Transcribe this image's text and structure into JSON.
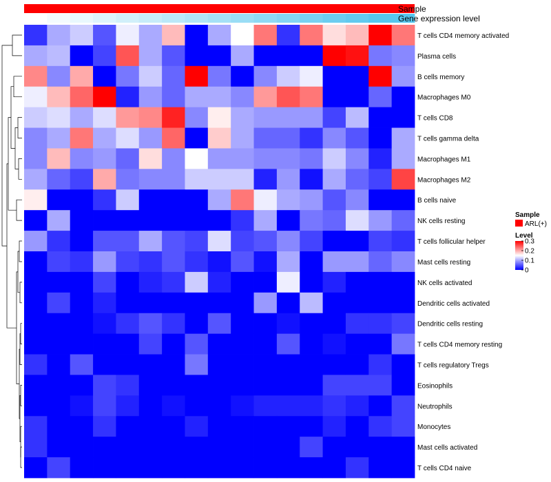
{
  "chart_data": {
    "type": "heatmap",
    "annotation_tracks": [
      {
        "name": "Sample",
        "kind": "categorical"
      },
      {
        "name": "Gene expression level",
        "kind": "continuous",
        "values": [
          0.0,
          0.07,
          0.13,
          0.2,
          0.27,
          0.33,
          0.4,
          0.47,
          0.53,
          0.6,
          0.67,
          0.73,
          0.8,
          0.87,
          0.93,
          1.0,
          1.0
        ]
      }
    ],
    "rows": [
      "T cells CD4 memory activated",
      "Plasma cells",
      "B cells memory",
      "Macrophages M0",
      "T cells CD8",
      "T cells gamma delta",
      "Macrophages M1",
      "Macrophages M2",
      "B cells naive",
      "NK cells resting",
      "T cells follicular helper",
      "Mast cells resting",
      "NK cells activated",
      "Dendritic cells activated",
      "Dendritic cells resting",
      "T cells CD4 memory resting",
      "T cells regulatory  Tregs",
      "Eosinophils",
      "Neutrophils",
      "Monocytes",
      "Mast cells activated",
      "T cells CD4 naive"
    ],
    "values": [
      [
        0.03,
        0.1,
        0.12,
        0.05,
        0.14,
        0.1,
        0.19,
        0.0,
        0.1,
        0.15,
        0.23,
        0.03,
        0.23,
        0.17,
        0.19,
        0.3,
        0.23
      ],
      [
        0.1,
        0.11,
        0.0,
        0.04,
        0.25,
        0.1,
        0.05,
        0.0,
        0.0,
        0.1,
        0.0,
        0.0,
        0.0,
        0.3,
        0.29,
        0.07,
        0.08
      ],
      [
        0.22,
        0.08,
        0.2,
        0.0,
        0.07,
        0.12,
        0.06,
        0.3,
        0.07,
        0.0,
        0.08,
        0.12,
        0.14,
        0.0,
        0.0,
        0.3,
        0.09
      ],
      [
        0.14,
        0.19,
        0.24,
        0.3,
        0.02,
        0.09,
        0.06,
        0.1,
        0.1,
        0.08,
        0.21,
        0.25,
        0.23,
        0.0,
        0.0,
        0.06,
        0.0
      ],
      [
        0.12,
        0.13,
        0.1,
        0.13,
        0.21,
        0.22,
        0.28,
        0.08,
        0.16,
        0.1,
        0.09,
        0.09,
        0.09,
        0.04,
        0.11,
        0.0,
        0.0
      ],
      [
        0.08,
        0.1,
        0.23,
        0.1,
        0.13,
        0.09,
        0.24,
        0.0,
        0.18,
        0.1,
        0.06,
        0.06,
        0.03,
        0.08,
        0.05,
        0.0,
        0.1
      ],
      [
        0.08,
        0.19,
        0.08,
        0.09,
        0.06,
        0.17,
        0.08,
        0.15,
        0.09,
        0.09,
        0.08,
        0.08,
        0.07,
        0.12,
        0.08,
        0.02,
        0.1
      ],
      [
        0.1,
        0.06,
        0.04,
        0.2,
        0.07,
        0.08,
        0.08,
        0.12,
        0.12,
        0.12,
        0.02,
        0.09,
        0.01,
        0.1,
        0.06,
        0.04,
        0.26
      ],
      [
        0.16,
        0.0,
        0.0,
        0.03,
        0.12,
        0.0,
        0.0,
        0.0,
        0.1,
        0.23,
        0.14,
        0.1,
        0.09,
        0.05,
        0.08,
        0.0,
        0.0
      ],
      [
        0.0,
        0.1,
        0.0,
        0.0,
        0.0,
        0.0,
        0.0,
        0.0,
        0.0,
        0.03,
        0.1,
        0.0,
        0.07,
        0.06,
        0.13,
        0.09,
        0.06
      ],
      [
        0.09,
        0.03,
        0.0,
        0.05,
        0.05,
        0.1,
        0.05,
        0.04,
        0.13,
        0.04,
        0.05,
        0.08,
        0.04,
        0.0,
        0.0,
        0.04,
        0.03
      ],
      [
        0.0,
        0.04,
        0.03,
        0.09,
        0.04,
        0.03,
        0.05,
        0.03,
        0.01,
        0.05,
        0.01,
        0.1,
        0.0,
        0.09,
        0.09,
        0.06,
        0.08
      ],
      [
        0.0,
        0.0,
        0.0,
        0.04,
        0.0,
        0.02,
        0.03,
        0.12,
        0.02,
        0.0,
        0.0,
        0.14,
        0.0,
        0.02,
        0.0,
        0.0,
        0.0
      ],
      [
        0.0,
        0.04,
        0.0,
        0.02,
        0.0,
        0.0,
        0.0,
        0.0,
        0.0,
        0.0,
        0.09,
        0.0,
        0.11,
        0.0,
        0.0,
        0.0,
        0.0
      ],
      [
        0.0,
        0.0,
        0.0,
        0.01,
        0.03,
        0.05,
        0.03,
        0.0,
        0.05,
        0.0,
        0.0,
        0.01,
        0.0,
        0.0,
        0.03,
        0.03,
        0.04
      ],
      [
        0.0,
        0.0,
        0.0,
        0.0,
        0.0,
        0.04,
        0.0,
        0.05,
        0.0,
        0.0,
        0.0,
        0.05,
        0.0,
        0.01,
        0.0,
        0.0,
        0.07
      ],
      [
        0.03,
        0.0,
        0.05,
        0.0,
        0.0,
        0.0,
        0.0,
        0.07,
        0.0,
        0.0,
        0.0,
        0.0,
        0.0,
        0.0,
        0.0,
        0.03,
        0.0
      ],
      [
        0.0,
        0.0,
        0.0,
        0.04,
        0.03,
        0.0,
        0.0,
        0.0,
        0.0,
        0.0,
        0.0,
        0.0,
        0.0,
        0.04,
        0.04,
        0.04,
        0.0
      ],
      [
        0.0,
        0.0,
        0.01,
        0.04,
        0.02,
        0.0,
        0.01,
        0.0,
        0.0,
        0.01,
        0.02,
        0.02,
        0.02,
        0.03,
        0.02,
        0.0,
        0.04
      ],
      [
        0.03,
        0.0,
        0.0,
        0.03,
        0.0,
        0.0,
        0.0,
        0.02,
        0.0,
        0.0,
        0.0,
        0.0,
        0.0,
        0.02,
        0.0,
        0.03,
        0.04
      ],
      [
        0.03,
        0.0,
        0.0,
        0.0,
        0.0,
        0.0,
        0.0,
        0.0,
        0.0,
        0.0,
        0.0,
        0.0,
        0.04,
        0.0,
        0.0,
        0.0,
        0.0
      ],
      [
        0.0,
        0.04,
        0.0,
        0.0,
        0.0,
        0.0,
        0.0,
        0.0,
        0.0,
        0.0,
        0.0,
        0.0,
        0.0,
        0.0,
        0.03,
        0.0,
        0.0
      ]
    ],
    "color_scale": {
      "min": 0,
      "max": 0.3,
      "low": "#0000ff",
      "mid": "#ffffff",
      "high": "#ff0000",
      "mid_value": 0.15
    },
    "annotation_colors": {
      "sample": "#ff0000",
      "expr_low": "#ffffff",
      "expr_high": "#56c6ee"
    },
    "legend": {
      "sample_title": "Sample",
      "sample_entries": [
        "ARL(+)"
      ],
      "level_title": "Level",
      "level_ticks": [
        "0.3",
        "0.2",
        "0.1",
        "0"
      ],
      "level_tick_values": [
        0.3,
        0.2,
        0.1,
        0.0
      ]
    }
  }
}
